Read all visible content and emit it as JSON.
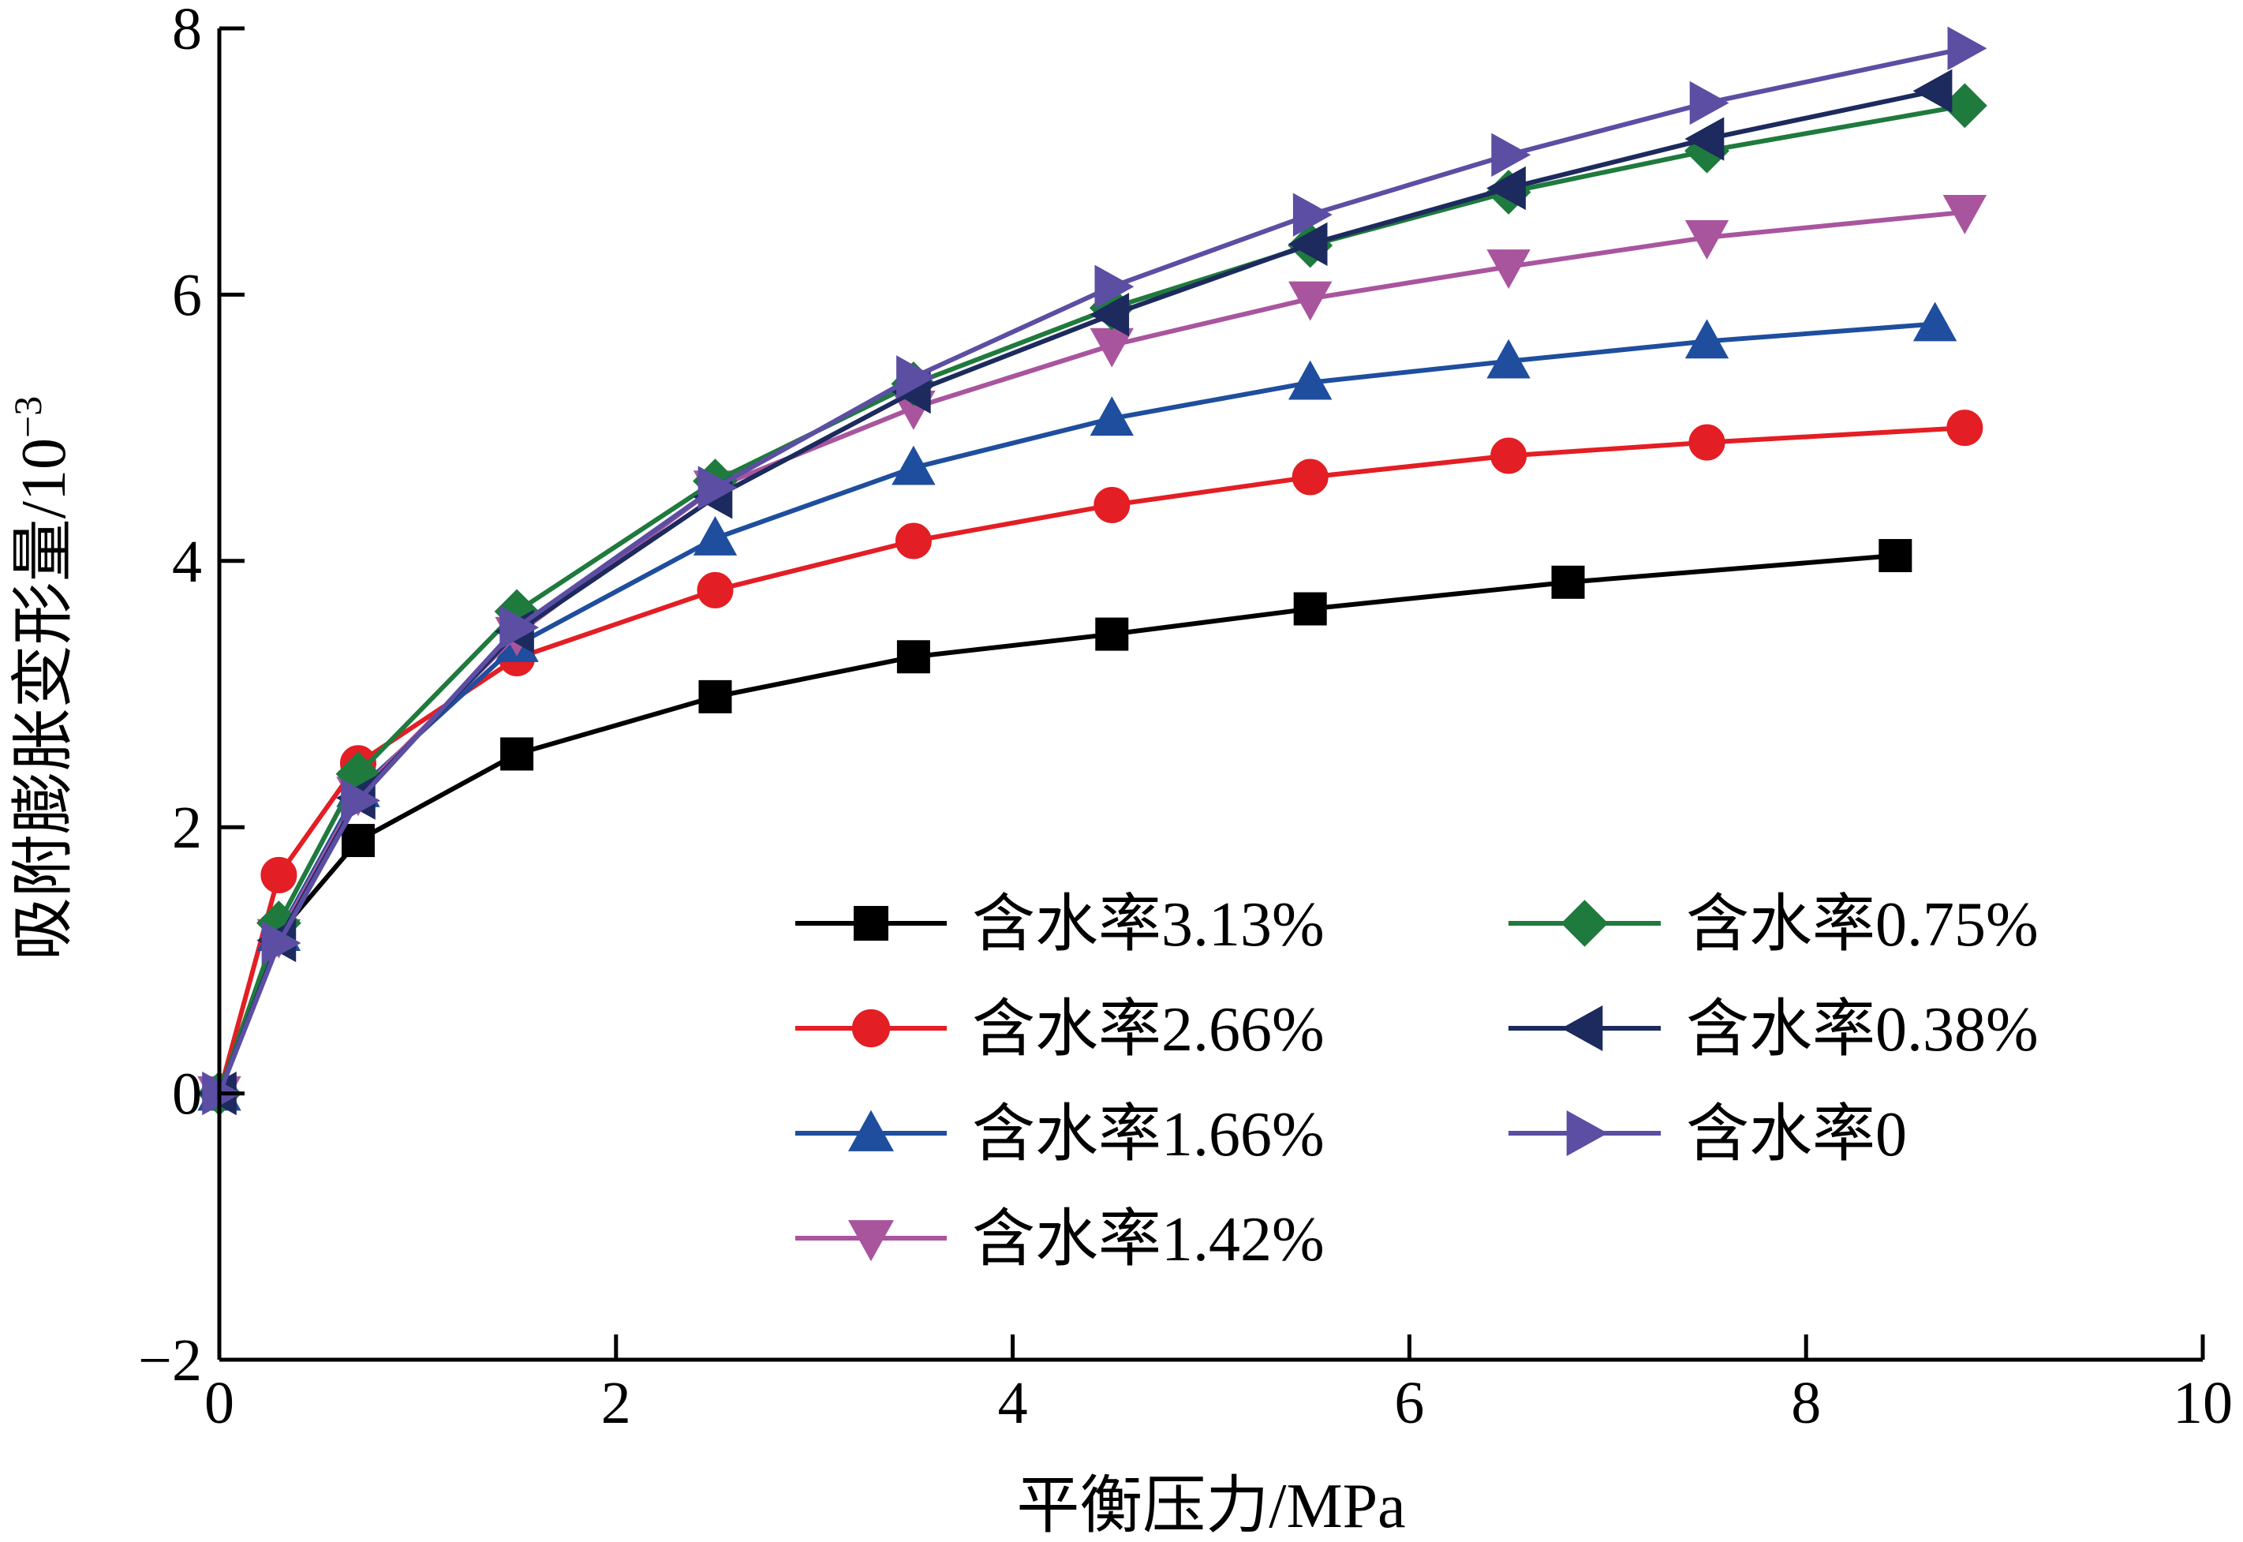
{
  "chart_data": {
    "type": "line",
    "xlabel": "平衡压力/MPa",
    "ylabel": "吸附膨胀变形量/10",
    "ylabel_exponent": "−3",
    "xlim": [
      0,
      10
    ],
    "ylim": [
      -2,
      8
    ],
    "x_ticks": [
      0,
      2,
      4,
      6,
      8,
      10
    ],
    "y_ticks": [
      -2,
      0,
      2,
      4,
      6,
      8
    ],
    "x_tick_labels": [
      "0",
      "2",
      "4",
      "6",
      "8",
      "10"
    ],
    "y_tick_labels": [
      "−2",
      "0",
      "2",
      "4",
      "6",
      "8"
    ],
    "grid": false,
    "legend_position": "bottom-right",
    "series": [
      {
        "name": "含水率3.13%",
        "color": "#000000",
        "marker": "square",
        "x": [
          0,
          0.3,
          0.7,
          1.5,
          2.5,
          3.5,
          4.5,
          5.5,
          6.8,
          8.45
        ],
        "y": [
          0,
          1.2,
          1.9,
          2.55,
          2.98,
          3.28,
          3.45,
          3.64,
          3.84,
          4.04
        ]
      },
      {
        "name": "含水率2.66%",
        "color": "#e31e24",
        "marker": "circle",
        "x": [
          0,
          0.3,
          0.7,
          1.5,
          2.5,
          3.5,
          4.5,
          5.5,
          6.5,
          7.5,
          8.8
        ],
        "y": [
          0,
          1.64,
          2.48,
          3.27,
          3.78,
          4.15,
          4.42,
          4.63,
          4.79,
          4.89,
          5.0
        ]
      },
      {
        "name": "含水率1.66%",
        "color": "#1f4e9e",
        "marker": "triangle-up",
        "x": [
          0,
          0.3,
          0.7,
          1.5,
          2.5,
          3.5,
          4.5,
          5.5,
          6.5,
          7.5,
          8.65
        ],
        "y": [
          0,
          1.2,
          2.28,
          3.37,
          4.17,
          4.7,
          5.07,
          5.34,
          5.5,
          5.65,
          5.78
        ]
      },
      {
        "name": "含水率1.42%",
        "color": "#a9559e",
        "marker": "triangle-down",
        "x": [
          0,
          0.3,
          0.7,
          1.5,
          2.5,
          3.5,
          4.5,
          5.5,
          6.5,
          7.5,
          8.8
        ],
        "y": [
          0,
          1.18,
          2.25,
          3.45,
          4.55,
          5.15,
          5.62,
          5.97,
          6.21,
          6.43,
          6.62
        ]
      },
      {
        "name": "含水率0.75%",
        "color": "#1f7a3d",
        "marker": "diamond",
        "x": [
          0,
          0.3,
          0.7,
          1.5,
          2.5,
          3.5,
          4.5,
          5.5,
          6.5,
          7.5,
          8.8
        ],
        "y": [
          0,
          1.28,
          2.4,
          3.62,
          4.6,
          5.33,
          5.9,
          6.37,
          6.77,
          7.08,
          7.42
        ]
      },
      {
        "name": "含水率0.38%",
        "color": "#1c2a5e",
        "marker": "triangle-left",
        "x": [
          0,
          0.3,
          0.7,
          1.5,
          2.5,
          3.5,
          4.5,
          5.5,
          6.5,
          7.5,
          8.65
        ],
        "y": [
          0,
          1.15,
          2.22,
          3.47,
          4.48,
          5.27,
          5.85,
          6.38,
          6.8,
          7.17,
          7.53
        ]
      },
      {
        "name": "含水率0",
        "color": "#5b4ea3",
        "marker": "triangle-right",
        "x": [
          0,
          0.3,
          0.7,
          1.5,
          2.5,
          3.5,
          4.5,
          5.5,
          6.5,
          7.5,
          8.8
        ],
        "y": [
          0,
          1.13,
          2.2,
          3.5,
          4.55,
          5.38,
          6.06,
          6.6,
          7.05,
          7.44,
          7.85
        ]
      }
    ]
  }
}
